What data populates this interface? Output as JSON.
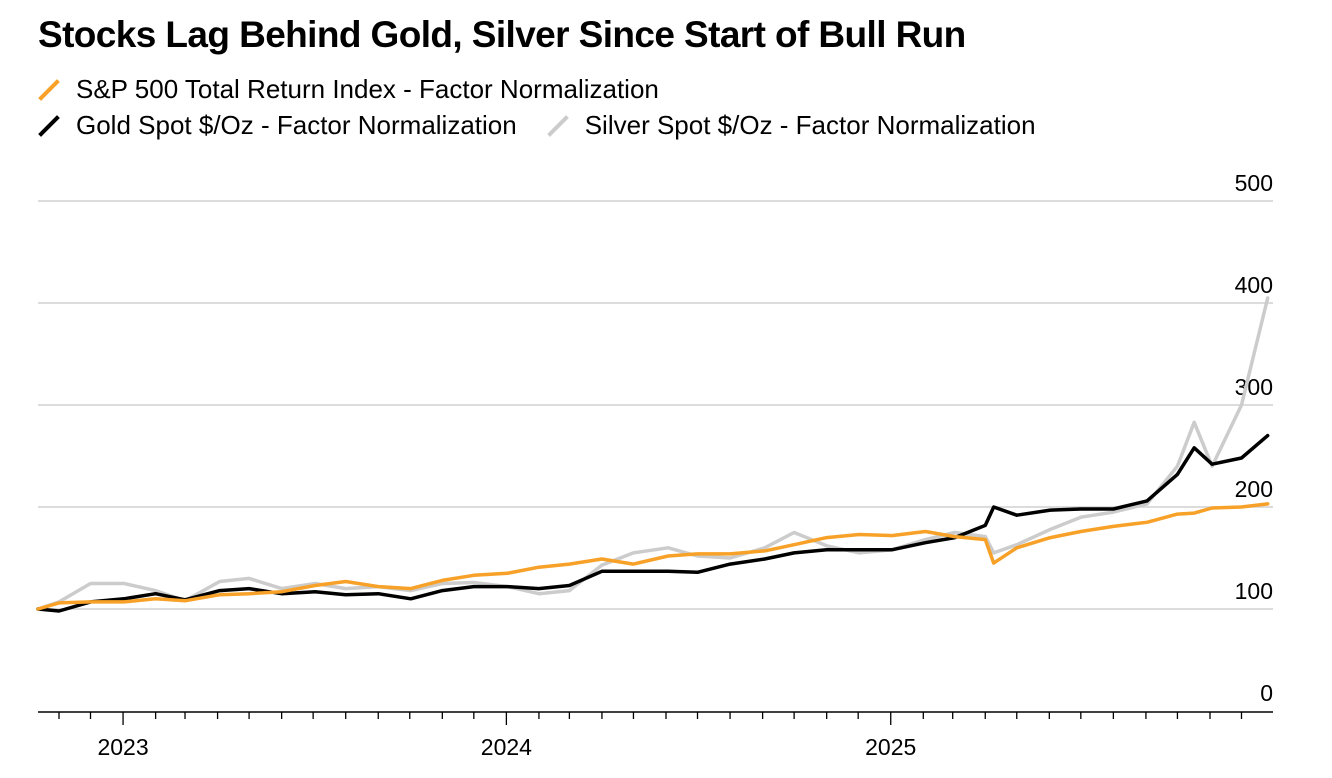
{
  "title": "Stocks Lag Behind Gold, Silver Since Start of Bull Run",
  "colors": {
    "sp500": "#f7a128",
    "gold": "#000000",
    "silver": "#cccccc",
    "grid": "#d0d0d0",
    "axis": "#000000"
  },
  "chart_data": {
    "type": "line",
    "title": "Stocks Lag Behind Gold, Silver Since Start of Bull Run",
    "xlabel": "",
    "ylabel": "",
    "ylim": [
      0,
      500
    ],
    "yticks": [
      0,
      100,
      200,
      300,
      400,
      500
    ],
    "xlim": [
      "2022-10-12",
      "2025-12-31"
    ],
    "xticks": [
      "2023",
      "2024",
      "2025"
    ],
    "grid": true,
    "legend_position": "top-left",
    "x": [
      "2022-10-12",
      "2022-11-01",
      "2022-12-01",
      "2023-01-02",
      "2023-02-01",
      "2023-03-01",
      "2023-04-03",
      "2023-05-01",
      "2023-06-01",
      "2023-07-03",
      "2023-08-01",
      "2023-09-01",
      "2023-10-02",
      "2023-11-01",
      "2023-12-01",
      "2024-01-02",
      "2024-02-01",
      "2024-03-01",
      "2024-04-01",
      "2024-05-01",
      "2024-06-03",
      "2024-07-01",
      "2024-08-01",
      "2024-09-03",
      "2024-10-01",
      "2024-11-01",
      "2024-12-02",
      "2025-01-02",
      "2025-02-03",
      "2025-03-03",
      "2025-04-01",
      "2025-04-09",
      "2025-05-01",
      "2025-06-02",
      "2025-07-01",
      "2025-08-01",
      "2025-09-02",
      "2025-10-01",
      "2025-10-17",
      "2025-11-03",
      "2025-12-01",
      "2025-12-26"
    ],
    "series": [
      {
        "name": "S&P 500 Total Return Index - Factor Normalization",
        "values": [
          100,
          106,
          107,
          107,
          110,
          108,
          114,
          115,
          117,
          123,
          127,
          122,
          120,
          128,
          133,
          135,
          141,
          144,
          149,
          144,
          152,
          154,
          154,
          157,
          163,
          170,
          173,
          172,
          176,
          171,
          168,
          145,
          160,
          170,
          176,
          181,
          185,
          193,
          194,
          199,
          200,
          203
        ]
      },
      {
        "name": "Gold Spot $/Oz - Factor Normalization",
        "values": [
          100,
          98,
          107,
          110,
          115,
          109,
          118,
          120,
          115,
          117,
          114,
          115,
          110,
          118,
          122,
          122,
          120,
          123,
          137,
          137,
          137,
          136,
          144,
          149,
          155,
          158,
          158,
          158,
          165,
          170,
          182,
          200,
          192,
          197,
          198,
          198,
          206,
          232,
          258,
          242,
          248,
          270
        ]
      },
      {
        "name": "Silver Spot $/Oz - Factor Normalization",
        "values": [
          100,
          107,
          125,
          125,
          118,
          108,
          127,
          130,
          120,
          125,
          120,
          122,
          118,
          125,
          126,
          122,
          115,
          118,
          143,
          155,
          160,
          152,
          150,
          160,
          175,
          162,
          155,
          158,
          168,
          175,
          171,
          155,
          163,
          178,
          190,
          195,
          203,
          240,
          283,
          240,
          300,
          405
        ]
      }
    ]
  }
}
